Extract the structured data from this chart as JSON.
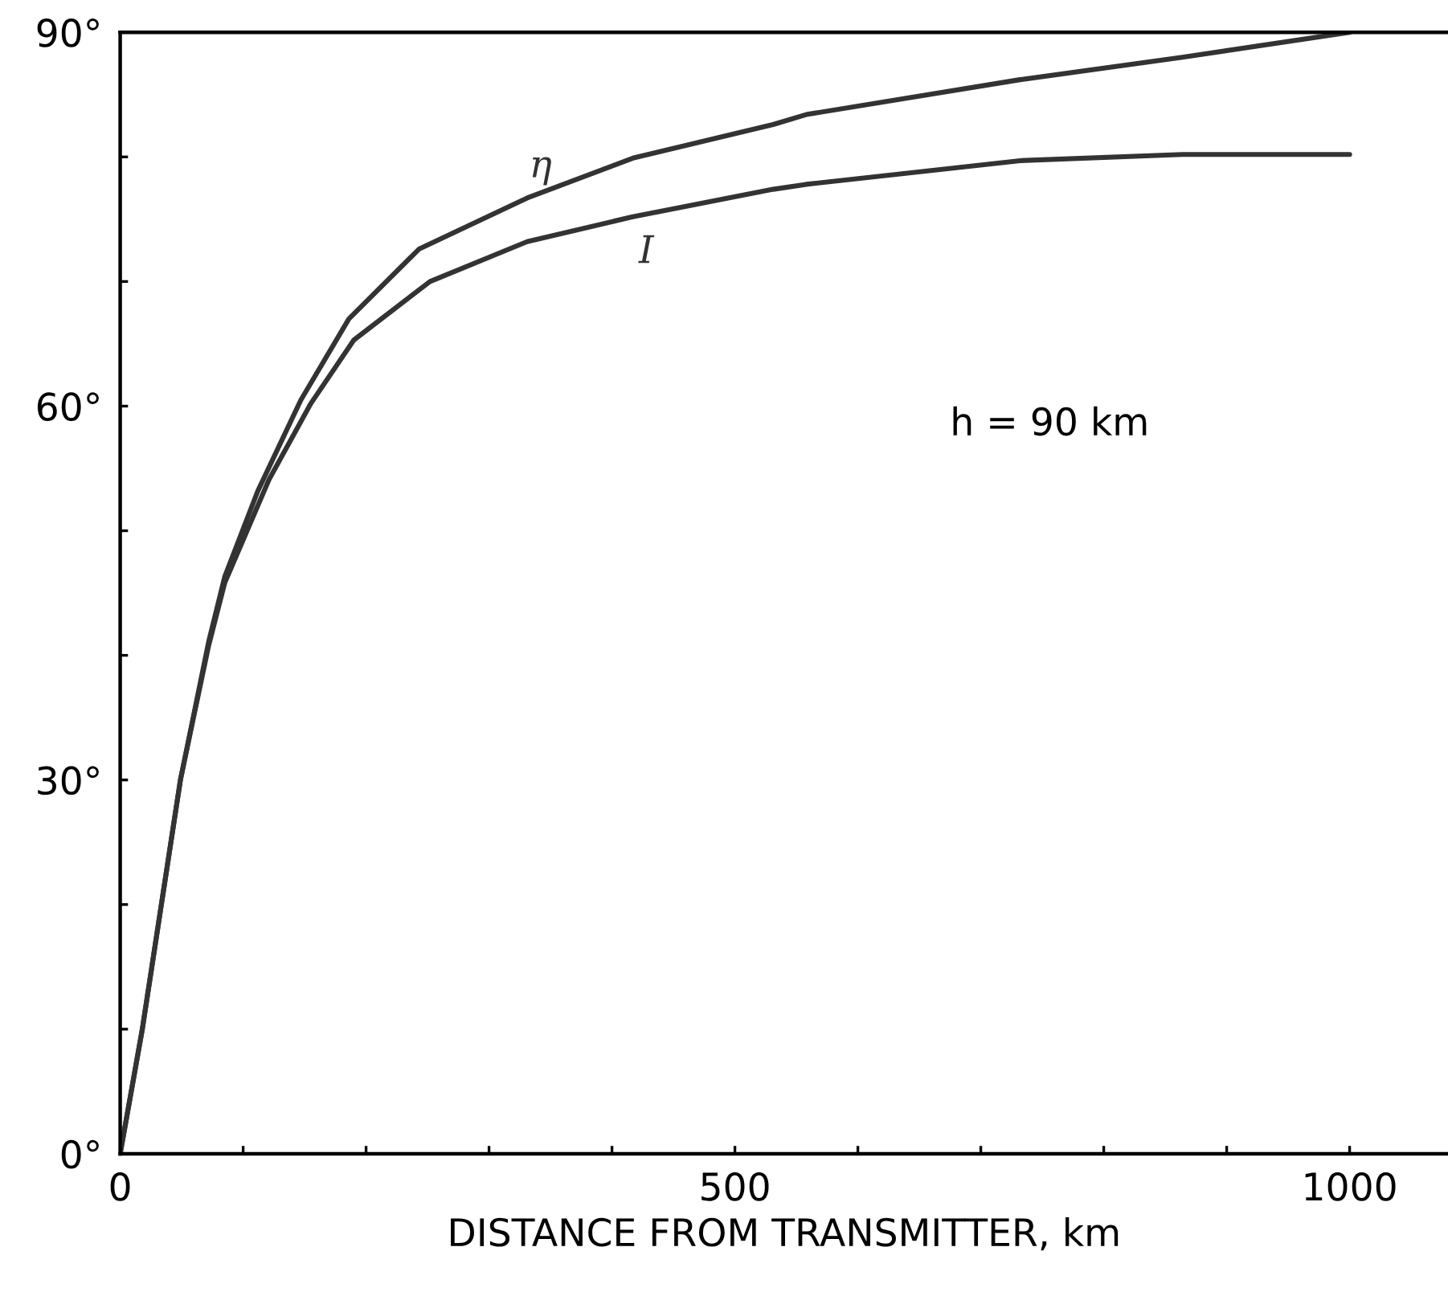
{
  "chart_data": {
    "type": "line",
    "xlabel": "DISTANCE FROM TRANSMITTER, km",
    "series": [
      {
        "name": "η",
        "color": "#333333",
        "x": [
          0,
          18,
          49,
          72,
          85,
          112,
          147,
          186,
          243,
          331,
          417,
          531,
          558,
          732,
          864,
          1000
        ],
        "values": [
          0,
          10,
          30,
          41.1,
          46.3,
          53.2,
          60.5,
          67.0,
          72.6,
          76.7,
          79.9,
          82.6,
          83.4,
          86.2,
          88.0,
          90
        ]
      },
      {
        "name": "I",
        "color": "#333333",
        "x": [
          0,
          18,
          49,
          72,
          85,
          121,
          155,
          190,
          252,
          331,
          417,
          531,
          558,
          732,
          864,
          1000
        ],
        "values": [
          0,
          10,
          30,
          40.8,
          45.8,
          54.1,
          60.2,
          65.3,
          70.0,
          73.2,
          75.2,
          77.4,
          77.8,
          79.7,
          80.2,
          80.2
        ]
      }
    ],
    "annotations": [
      "h = 90 km"
    ],
    "xlim": [
      0,
      1080
    ],
    "ylim": [
      0,
      90
    ],
    "xticks": [
      0,
      {
        "value": 100,
        "label": null
      },
      {
        "value": 200,
        "label": null
      },
      {
        "value": 300,
        "label": null
      },
      {
        "value": 400,
        "label": null
      },
      500,
      {
        "value": 600,
        "label": null
      },
      {
        "value": 700,
        "label": null
      },
      {
        "value": 800,
        "label": null
      },
      {
        "value": 900,
        "label": null
      },
      1000
    ],
    "yticks": [
      {
        "value": 0,
        "label": "0°"
      },
      {
        "value": 10,
        "label": null
      },
      {
        "value": 20,
        "label": null
      },
      {
        "value": 30,
        "label": "30°"
      },
      {
        "value": 40,
        "label": null
      },
      {
        "value": 50,
        "label": null
      },
      {
        "value": 60,
        "label": "60°"
      },
      {
        "value": 70,
        "label": null
      },
      {
        "value": 80,
        "label": null
      },
      {
        "value": 90,
        "label": "90°"
      }
    ],
    "grid": false,
    "legend": false
  }
}
